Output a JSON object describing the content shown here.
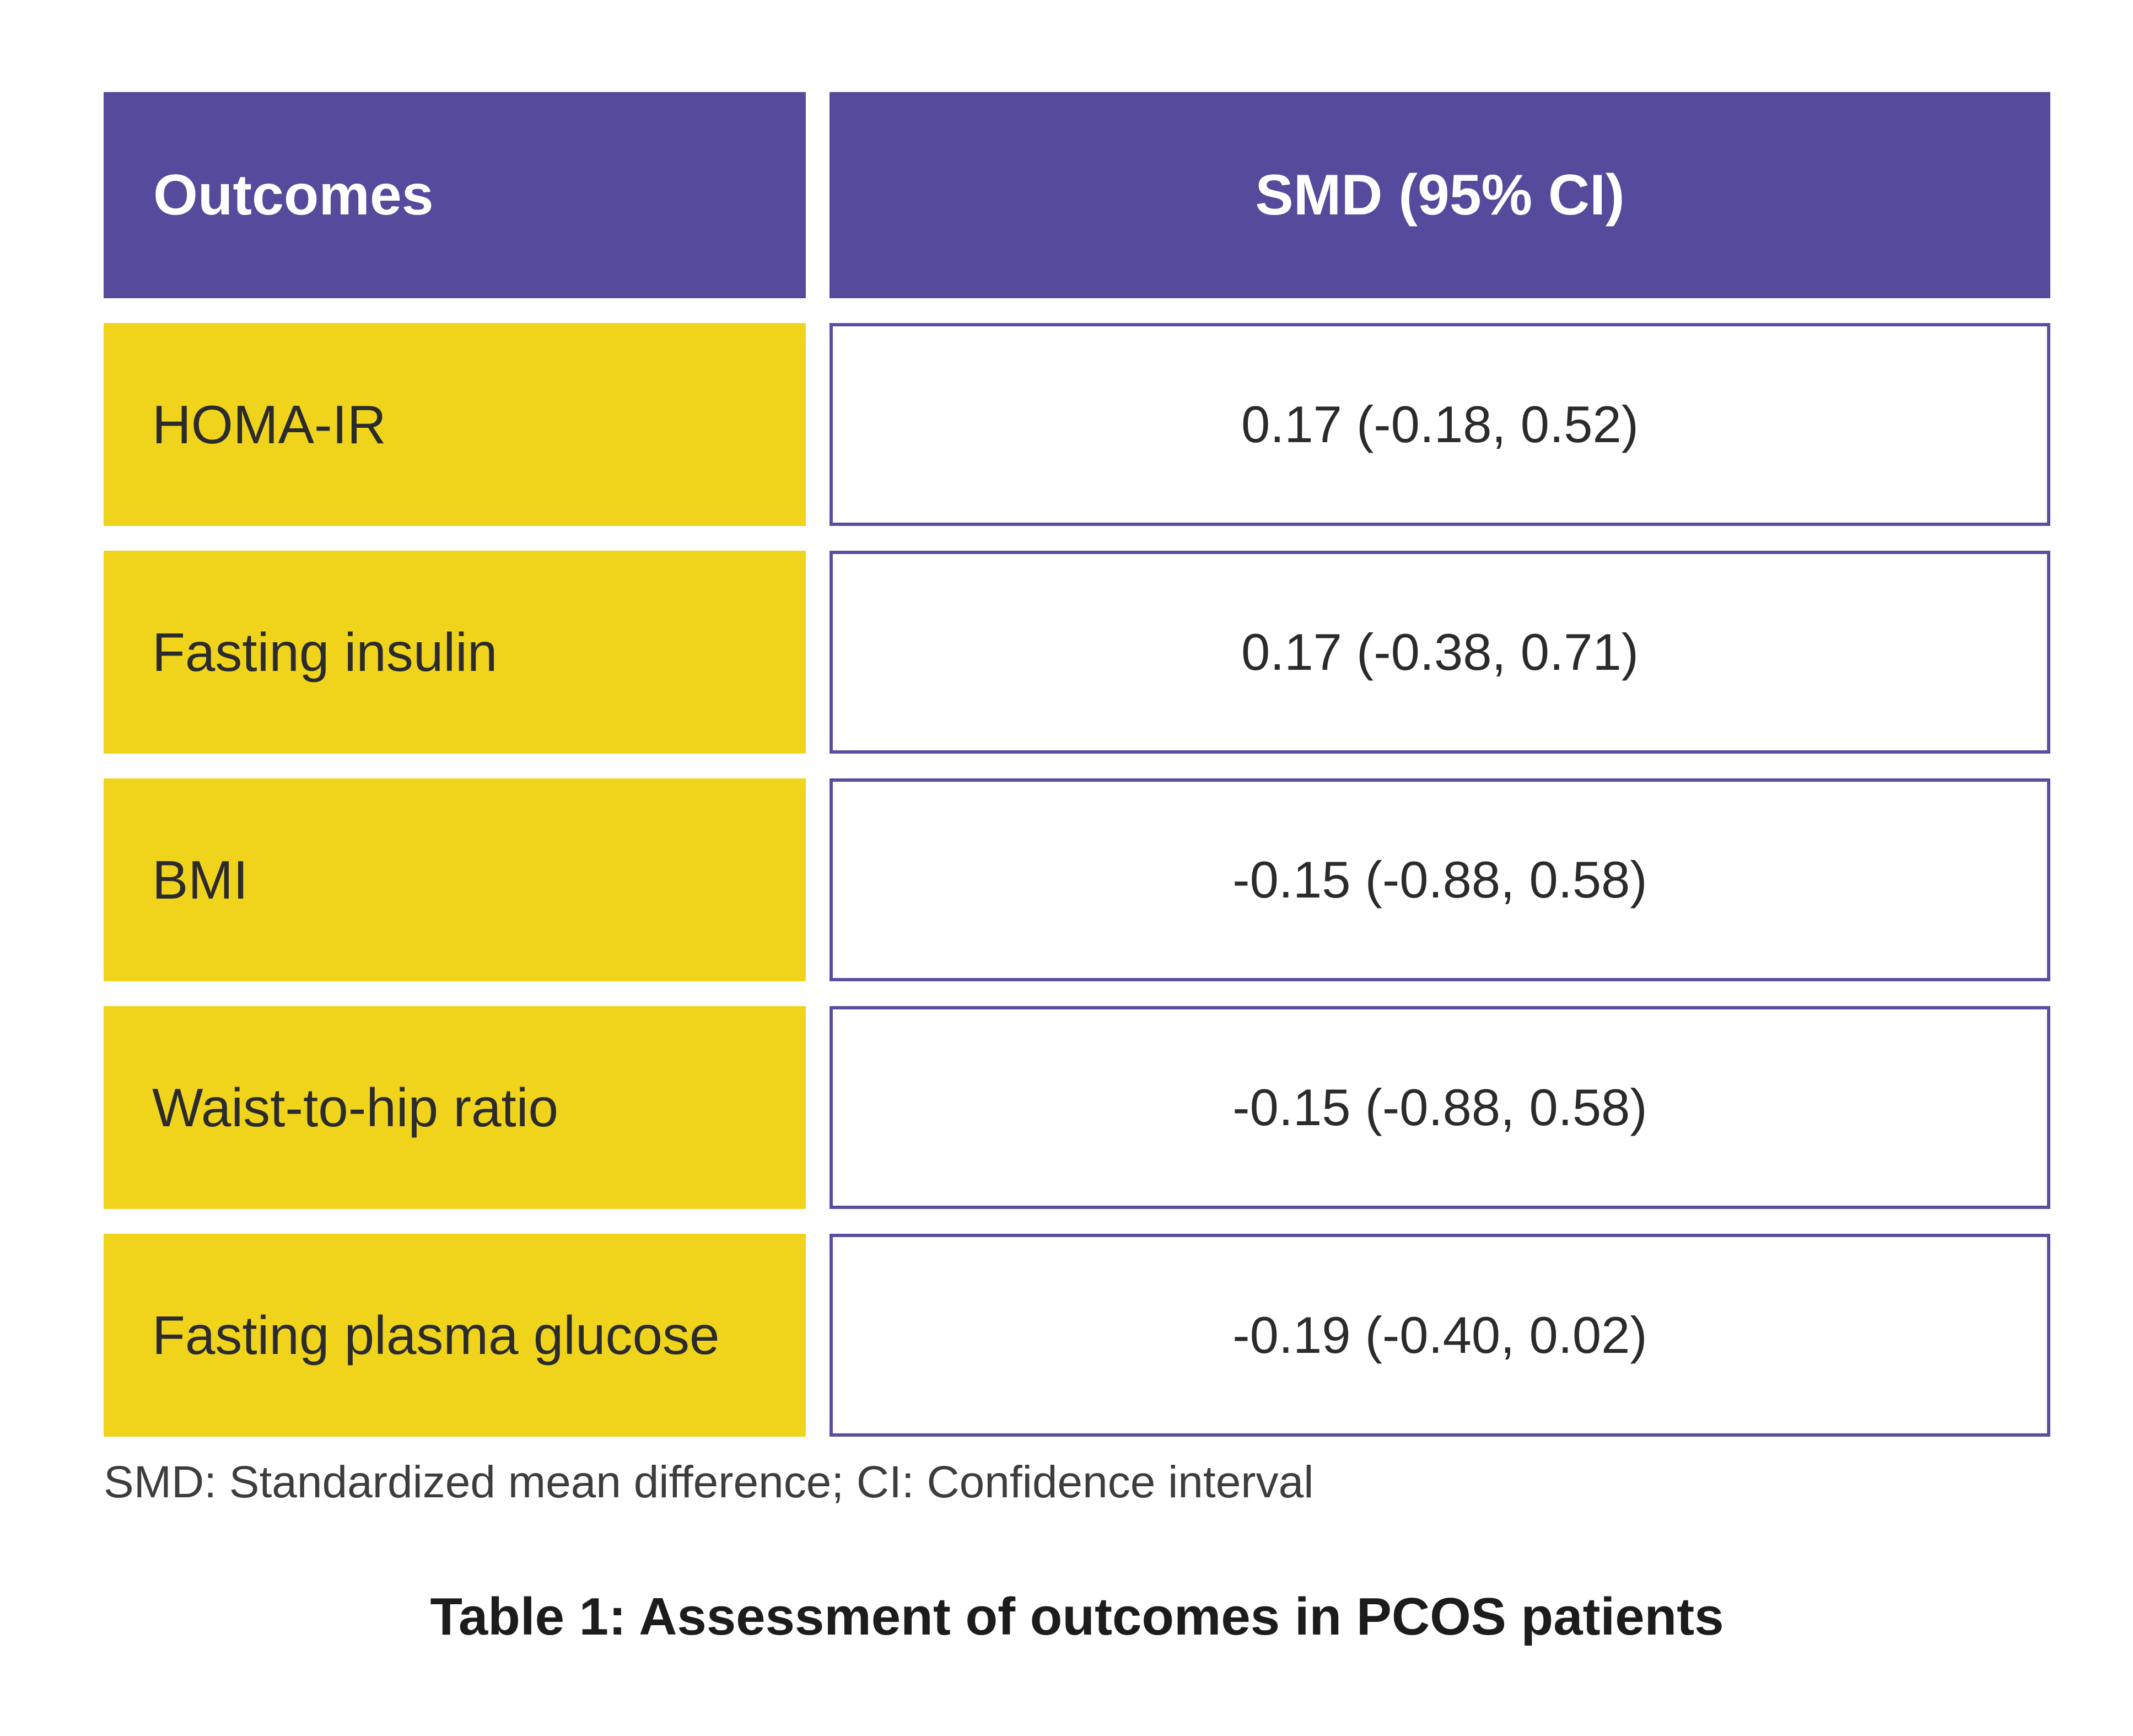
{
  "chart_data": {
    "type": "table",
    "title": "Table 1: Assessment of outcomes in PCOS patients",
    "columns": [
      "Outcomes",
      "SMD (95% CI)"
    ],
    "rows": [
      [
        "HOMA-IR",
        "0.17 (-0.18, 0.52)"
      ],
      [
        "Fasting insulin",
        "0.17 (-0.38, 0.71)"
      ],
      [
        "BMI",
        "-0.15 (-0.88, 0.58)"
      ],
      [
        "Waist-to-hip ratio",
        "-0.15 (-0.88, 0.58)"
      ],
      [
        "Fasting plasma glucose",
        "-0.19 (-0.40, 0.02)"
      ]
    ],
    "footnote": "SMD: Standardized mean difference; CI: Confidence interval"
  },
  "colors": {
    "header-bg": "#554A9B",
    "header-text": "#FFFFFF",
    "label-bg": "#F0D41C",
    "label-text": "#2B2B2B",
    "value-border": "#5A4E9E",
    "value-text": "#2B2B2B",
    "footnote-text": "#3D3D3D",
    "caption-text": "#1C1C1C"
  }
}
